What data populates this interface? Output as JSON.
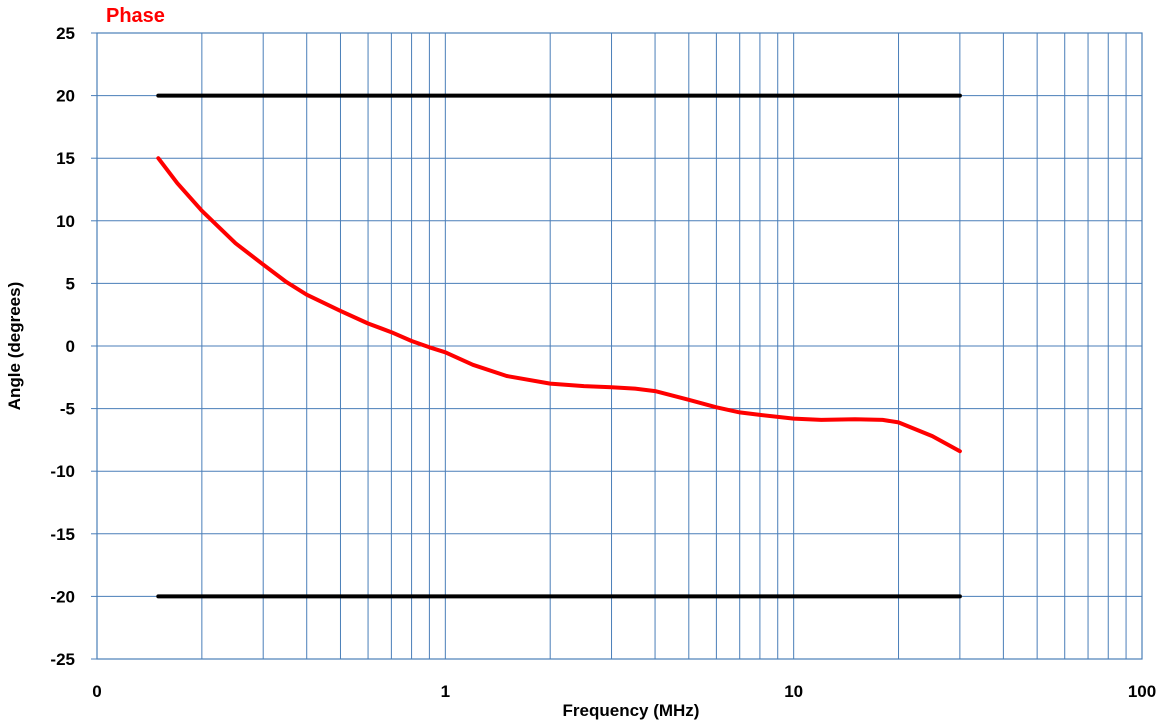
{
  "chart_data": {
    "type": "line",
    "title": "Phase",
    "xlabel": "Frequency (MHz)",
    "ylabel": "Angle (degrees)",
    "x_scale": "log",
    "xlim": [
      0.1,
      100
    ],
    "ylim": [
      -25,
      25
    ],
    "grid": true,
    "x_tick_labels": [
      {
        "value": 0.1,
        "label": "0"
      },
      {
        "value": 1,
        "label": "1"
      },
      {
        "value": 10,
        "label": "10"
      },
      {
        "value": 100,
        "label": "100"
      }
    ],
    "y_ticks": [
      25,
      20,
      15,
      10,
      5,
      0,
      -5,
      -10,
      -15,
      -20,
      -25
    ],
    "series": [
      {
        "color": "#ff0000",
        "x": [
          0.15,
          0.17,
          0.2,
          0.25,
          0.3,
          0.35,
          0.4,
          0.5,
          0.6,
          0.7,
          0.8,
          0.9,
          1.0,
          1.2,
          1.5,
          2.0,
          2.5,
          3.0,
          3.5,
          4.0,
          5.0,
          6.0,
          7.0,
          8.0,
          10,
          12,
          15,
          18,
          20,
          25,
          30
        ],
        "y": [
          15.0,
          13.0,
          10.8,
          8.2,
          6.5,
          5.1,
          4.1,
          2.8,
          1.8,
          1.1,
          0.4,
          -0.1,
          -0.5,
          -1.5,
          -2.4,
          -3.0,
          -3.2,
          -3.3,
          -3.4,
          -3.6,
          -4.3,
          -4.9,
          -5.3,
          -5.5,
          -5.8,
          -5.9,
          -5.85,
          -5.9,
          -6.1,
          -7.2,
          -8.4
        ]
      },
      {
        "color": "#000000",
        "x": [
          0.15,
          30
        ],
        "y": [
          20,
          20
        ]
      },
      {
        "color": "#000000",
        "x": [
          0.15,
          30
        ],
        "y": [
          -20,
          -20
        ]
      }
    ]
  }
}
